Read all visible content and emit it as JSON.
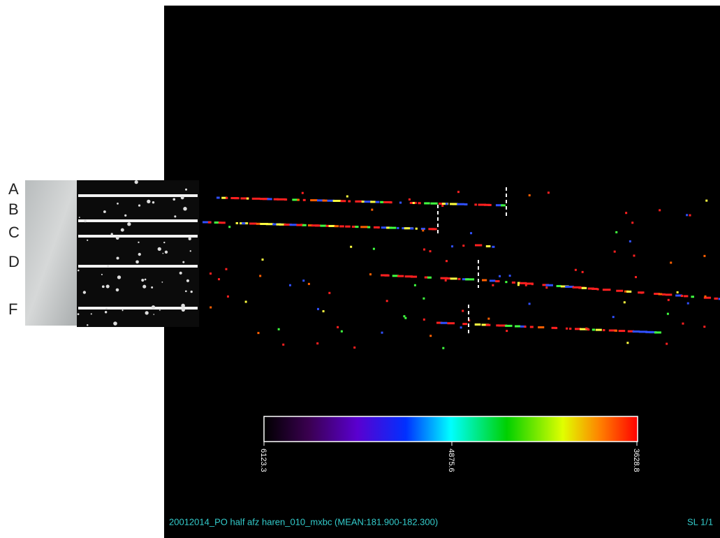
{
  "row_labels": [
    "A",
    "B",
    "C",
    "D",
    "F"
  ],
  "colorbar": {
    "labels": [
      "6123.3",
      "4875.6",
      "3628.8"
    ]
  },
  "footer": {
    "caption": "20012014_PO half afz haren_010_mxbc (MEAN:181.900-182.300)",
    "slice": "SL 1/1"
  }
}
